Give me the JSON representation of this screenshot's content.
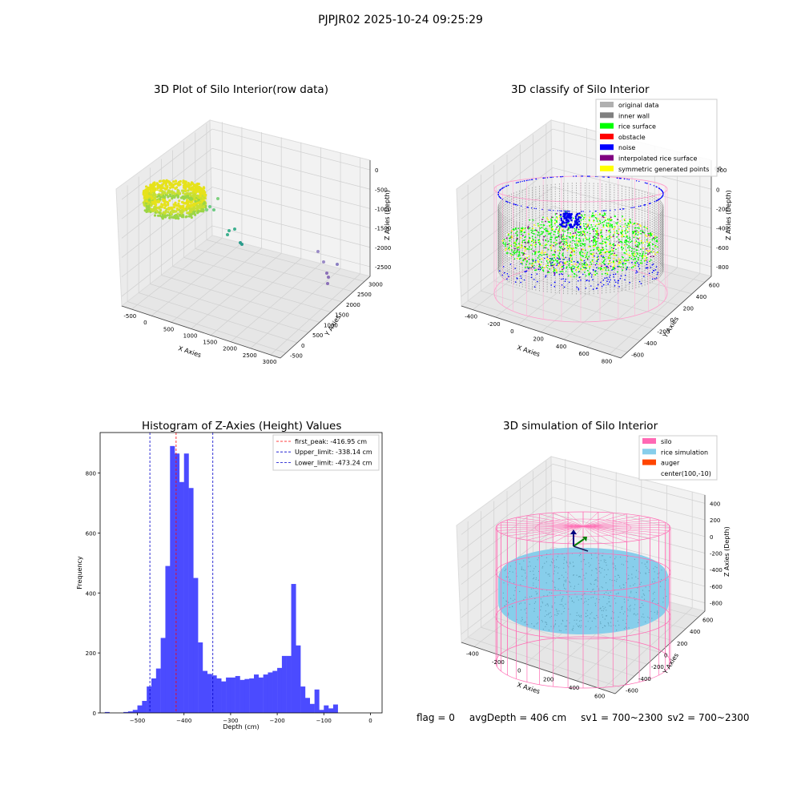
{
  "suptitle": "PJPJR02 2025-10-24 09:25:29",
  "panels": {
    "raw": {
      "title": "3D Plot of Silo Interior(row data)",
      "xlabel": "X Axies",
      "ylabel": "Y Axies",
      "zlabel": "Z Axies (Depth)",
      "xticks": [
        "-500",
        "0",
        "500",
        "1000",
        "1500",
        "2000",
        "2500",
        "3000"
      ],
      "yticks": [
        "-500",
        "0",
        "500",
        "1000",
        "1500",
        "2000",
        "2500",
        "3000"
      ],
      "zticks": [
        "0",
        "-500",
        "-1000",
        "-1500",
        "-2000",
        "-2500"
      ]
    },
    "classify": {
      "title": "3D classify of Silo Interior",
      "xlabel": "X Axies",
      "ylabel": "Y Axies",
      "zlabel": "Z Axies (Depth)",
      "xticks": [
        "-400",
        "-200",
        "0",
        "200",
        "400",
        "600",
        "800"
      ],
      "yticks": [
        "-600",
        "-400",
        "-200",
        "0",
        "200",
        "400",
        "600"
      ],
      "zticks": [
        "200",
        "0",
        "-200",
        "-400",
        "-600",
        "-800"
      ],
      "ztick_partial": "00",
      "legend": [
        {
          "label": "original data",
          "color": "#b0b0b0"
        },
        {
          "label": "inner wall",
          "color": "#808080"
        },
        {
          "label": "rice surface",
          "color": "#00ff00"
        },
        {
          "label": "obstacle",
          "color": "#ff0000"
        },
        {
          "label": "noise",
          "color": "#0000ff"
        },
        {
          "label": "interpolated rice surface",
          "color": "#800080"
        },
        {
          "label": "symmetric generated points",
          "color": "#ffff00"
        }
      ]
    },
    "simulation": {
      "title": "3D simulation of Silo Interior",
      "xlabel": "X Axies",
      "ylabel": "Y Axies",
      "zlabel": "Z Axies (Depth)",
      "xticks": [
        "-400",
        "-200",
        "0",
        "200",
        "400",
        "600"
      ],
      "yticks": [
        "-600",
        "-400",
        "-200",
        "0",
        "200",
        "400",
        "600"
      ],
      "zticks": [
        "400",
        "200",
        "0",
        "-200",
        "-400",
        "-600",
        "-800"
      ],
      "legend": [
        {
          "label": "silo",
          "color": "#ff69b4"
        },
        {
          "label": "rice simulation",
          "color": "#87ceeb"
        },
        {
          "label": "auger",
          "color": "#ff4500"
        },
        {
          "label": "center(100,-10)",
          "color": ""
        }
      ]
    }
  },
  "status": {
    "flag": "flag = 0",
    "avg": "avgDepth = 406 cm",
    "sv1": "sv1 = 700~2300",
    "sv2": "sv2 = 700~2300"
  },
  "chart_data": [
    {
      "type": "scatter",
      "title": "3D Plot of Silo Interior(row data)",
      "xlabel": "X Axies",
      "ylabel": "Y Axies",
      "zlabel": "Z Axies (Depth)",
      "xlim": [
        -700,
        3100
      ],
      "ylim": [
        -700,
        3100
      ],
      "zlim": [
        -2900,
        100
      ]
    },
    {
      "type": "scatter",
      "title": "3D classify of Silo Interior",
      "xlabel": "X Axies",
      "ylabel": "Y Axies",
      "zlabel": "Z Axies (Depth)",
      "series": [
        {
          "name": "original data"
        },
        {
          "name": "inner wall"
        },
        {
          "name": "rice surface"
        },
        {
          "name": "obstacle"
        },
        {
          "name": "noise"
        },
        {
          "name": "interpolated rice surface"
        },
        {
          "name": "symmetric generated points"
        }
      ],
      "xlim": [
        -500,
        850
      ],
      "ylim": [
        -700,
        700
      ],
      "zlim": [
        -900,
        300
      ]
    },
    {
      "type": "bar",
      "title": "Histogram of Z-Axies (Height) Values",
      "xlabel": "Depth (cm)",
      "ylabel": "Frequency",
      "xlim": [
        -580,
        25
      ],
      "ylim": [
        0,
        935
      ],
      "xticks": [
        -500,
        -400,
        -300,
        -200,
        -100,
        0
      ],
      "yticks": [
        0,
        200,
        400,
        600,
        800
      ],
      "bin_start": -570,
      "bin_width": 10,
      "values": [
        3,
        0,
        0,
        0,
        3,
        5,
        10,
        25,
        40,
        88,
        115,
        148,
        250,
        490,
        890,
        865,
        770,
        865,
        750,
        450,
        235,
        140,
        130,
        125,
        115,
        105,
        118,
        118,
        123,
        110,
        113,
        115,
        128,
        118,
        128,
        135,
        140,
        150,
        190,
        190,
        430,
        225,
        88,
        50,
        30,
        78,
        10,
        25,
        15,
        28
      ],
      "lines": [
        {
          "label": "first_peak: -416.95 cm",
          "x": -416.95,
          "color": "#ff0000"
        },
        {
          "label": "Upper_limit: -338.14 cm",
          "x": -338.14,
          "color": "#0000cc"
        },
        {
          "label": "Lower_limit: -473.24 cm",
          "x": -473.24,
          "color": "#0000cc"
        }
      ],
      "bar_color": "#4b4bff"
    },
    {
      "type": "scatter",
      "title": "3D simulation of Silo Interior",
      "xlabel": "X Axies",
      "ylabel": "Y Axies",
      "zlabel": "Z Axies (Depth)",
      "series": [
        {
          "name": "silo"
        },
        {
          "name": "rice simulation"
        },
        {
          "name": "auger"
        },
        {
          "name": "center(100,-10)"
        }
      ],
      "center": [
        100,
        -10
      ],
      "xlim": [
        -500,
        750
      ],
      "ylim": [
        -700,
        700
      ],
      "zlim": [
        -900,
        450
      ]
    }
  ]
}
